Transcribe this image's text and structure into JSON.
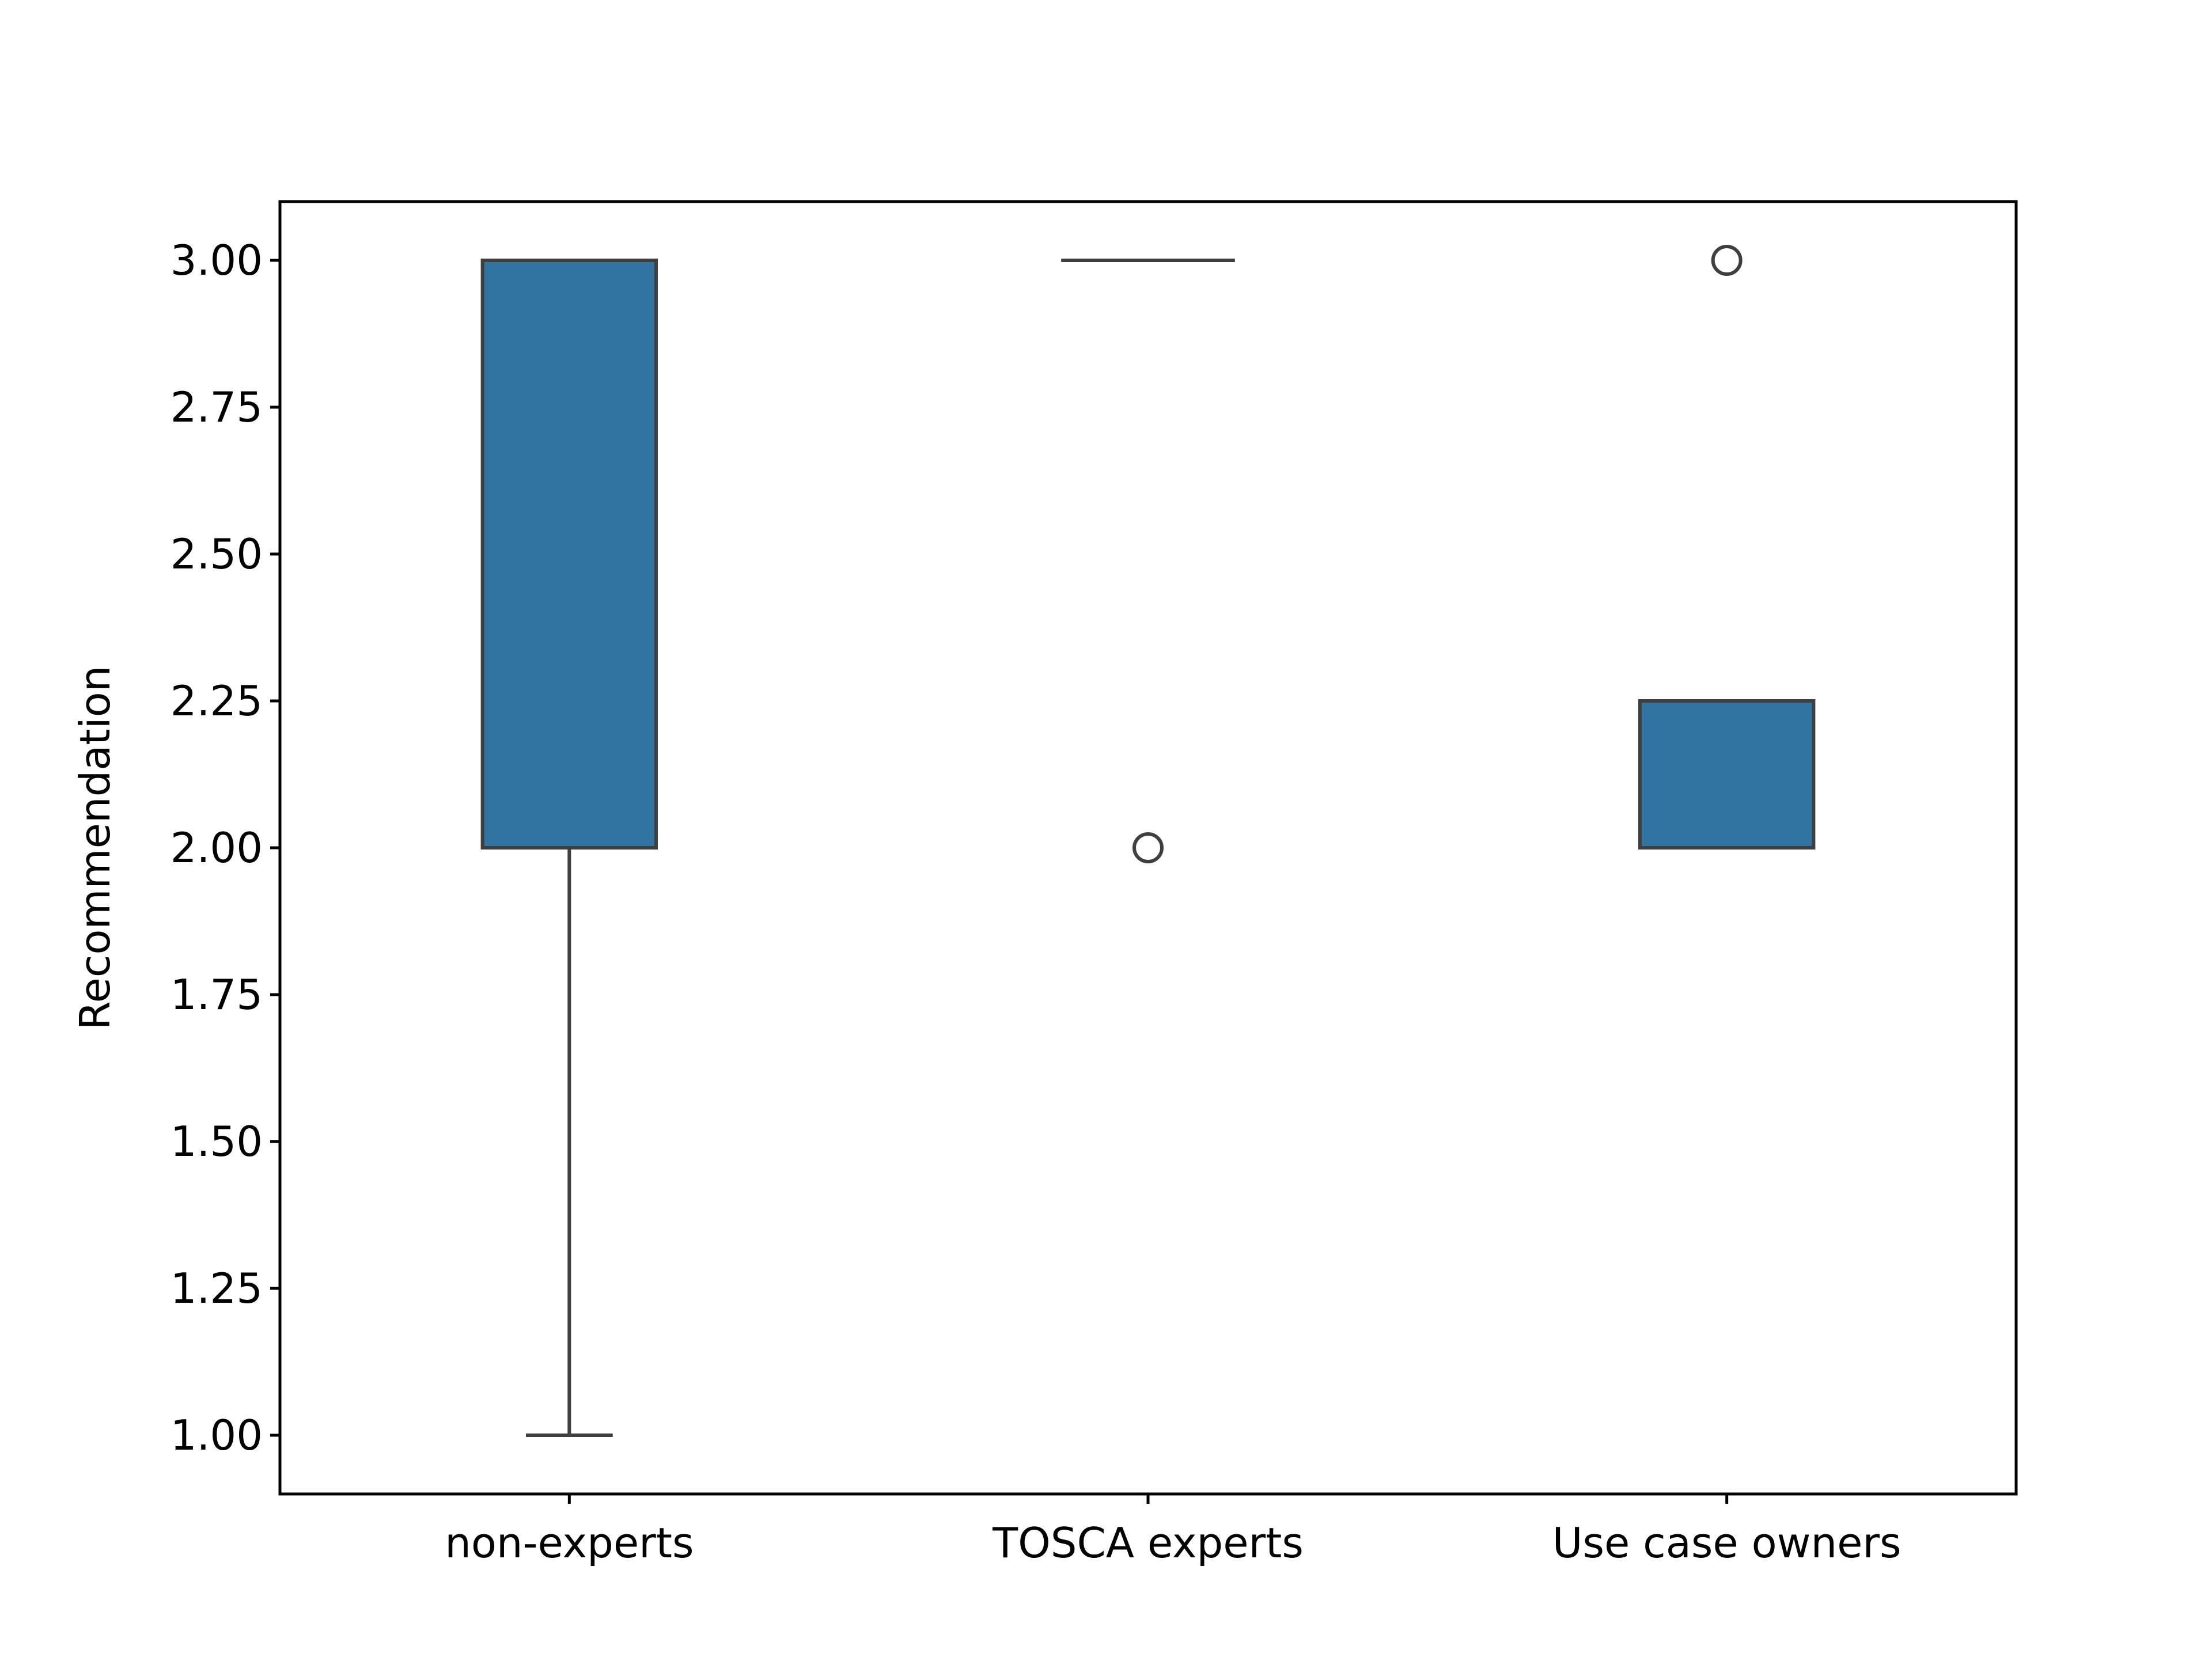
{
  "chart_data": {
    "type": "box",
    "title": "",
    "xlabel": "",
    "ylabel": "Recommendation",
    "ylim": [
      0.9,
      3.1
    ],
    "y_ticks": [
      "1.00",
      "1.25",
      "1.50",
      "1.75",
      "2.00",
      "2.25",
      "2.50",
      "2.75",
      "3.00"
    ],
    "grid": false,
    "legend": "none",
    "box_color": "#3274a1",
    "line_color": "#3f3f3f",
    "categories": [
      "non-experts",
      "TOSCA experts",
      "Use case owners"
    ],
    "boxes": [
      {
        "category": "non-experts",
        "whisker_low": 1.0,
        "q1": 2.0,
        "median": 3.0,
        "q3": 3.0,
        "whisker_high": 3.0,
        "outliers": []
      },
      {
        "category": "TOSCA experts",
        "whisker_low": 3.0,
        "q1": 3.0,
        "median": 3.0,
        "q3": 3.0,
        "whisker_high": 3.0,
        "outliers": [
          2.0
        ]
      },
      {
        "category": "Use case owners",
        "whisker_low": 2.0,
        "q1": 2.0,
        "median": 2.0,
        "q3": 2.25,
        "whisker_high": 2.25,
        "outliers": [
          3.0
        ]
      }
    ]
  }
}
